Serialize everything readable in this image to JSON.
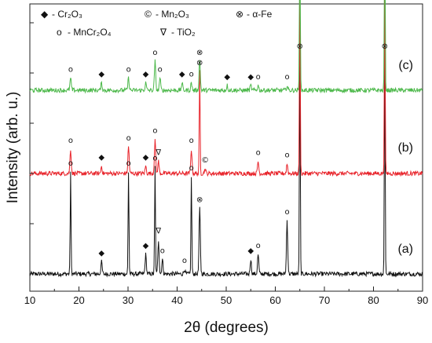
{
  "chart_data": {
    "type": "line",
    "xlabel": "2θ (degrees)",
    "ylabel": "Intensity (arb. u.)",
    "xlim": [
      10,
      90
    ],
    "xticks": [
      10,
      20,
      30,
      40,
      50,
      60,
      70,
      80,
      90
    ],
    "grid": false,
    "legend": {
      "placement": "top",
      "entries": [
        {
          "symbol": "◆",
          "symbol_name": "diamond",
          "text": "- Cr₂O₃"
        },
        {
          "symbol": "©",
          "symbol_name": "circled-c",
          "text": "- Mn₂O₃"
        },
        {
          "symbol": "⊗",
          "symbol_name": "circled-x",
          "text": "- α-Fe"
        },
        {
          "symbol": "o",
          "symbol_name": "circle",
          "text": "- MnCr₂O₄"
        },
        {
          "symbol": "∇",
          "symbol_name": "nabla",
          "text": "- TiO₂"
        }
      ]
    },
    "series": [
      {
        "name": "(a)",
        "color": "#111111",
        "baseline": 0.0,
        "peaks": [
          {
            "x": 18.3,
            "h": 0.42,
            "mark": "o"
          },
          {
            "x": 24.6,
            "h": 0.05,
            "mark": "◆"
          },
          {
            "x": 30.1,
            "h": 0.42,
            "mark": "o"
          },
          {
            "x": 33.6,
            "h": 0.08,
            "mark": "◆"
          },
          {
            "x": 35.5,
            "h": 0.44,
            "mark": "o"
          },
          {
            "x": 36.2,
            "h": 0.14,
            "mark": "∇"
          },
          {
            "x": 37.0,
            "h": 0.06,
            "mark": "o"
          },
          {
            "x": 41.5,
            "h": 0.02,
            "mark": "o"
          },
          {
            "x": 42.9,
            "h": 0.4,
            "mark": "o"
          },
          {
            "x": 44.6,
            "h": 0.27,
            "mark": "⊗"
          },
          {
            "x": 55.0,
            "h": 0.06,
            "mark": "◆"
          },
          {
            "x": 56.5,
            "h": 0.08,
            "mark": "o"
          },
          {
            "x": 62.4,
            "h": 0.22,
            "mark": "o"
          },
          {
            "x": 65.0,
            "h": 0.9,
            "mark": "⊗"
          },
          {
            "x": 82.3,
            "h": 0.9,
            "mark": "⊗"
          }
        ]
      },
      {
        "name": "(b)",
        "color": "#e8232a",
        "baseline": 1.0,
        "peaks": [
          {
            "x": 18.3,
            "h": 0.1,
            "mark": "o"
          },
          {
            "x": 24.6,
            "h": 0.03,
            "mark": "◆"
          },
          {
            "x": 30.1,
            "h": 0.11,
            "mark": "o"
          },
          {
            "x": 33.6,
            "h": 0.03,
            "mark": "◆"
          },
          {
            "x": 35.5,
            "h": 0.14,
            "mark": "o"
          },
          {
            "x": 36.2,
            "h": 0.05,
            "mark": "∇"
          },
          {
            "x": 42.9,
            "h": 0.1,
            "mark": "o"
          },
          {
            "x": 44.6,
            "h": 0.42,
            "mark": "⊗"
          },
          {
            "x": 45.7,
            "h": 0.02,
            "mark": "©"
          },
          {
            "x": 56.5,
            "h": 0.05,
            "mark": "o"
          },
          {
            "x": 62.4,
            "h": 0.04,
            "mark": "o"
          },
          {
            "x": 65.0,
            "h": 0.72,
            "mark": "⊗"
          },
          {
            "x": 82.3,
            "h": 0.72,
            "mark": "⊗"
          }
        ]
      },
      {
        "name": "(c)",
        "color": "#4cb84a",
        "baseline": 2.0,
        "peaks": [
          {
            "x": 18.3,
            "h": 0.05,
            "mark": "o"
          },
          {
            "x": 24.6,
            "h": 0.03,
            "mark": "◆"
          },
          {
            "x": 30.1,
            "h": 0.05,
            "mark": "o"
          },
          {
            "x": 33.6,
            "h": 0.03,
            "mark": "◆"
          },
          {
            "x": 35.5,
            "h": 0.12,
            "mark": "o"
          },
          {
            "x": 36.5,
            "h": 0.05,
            "mark": "o"
          },
          {
            "x": 41.0,
            "h": 0.03,
            "mark": "◆"
          },
          {
            "x": 42.9,
            "h": 0.03,
            "mark": "o"
          },
          {
            "x": 44.6,
            "h": 0.12,
            "mark": "⊗"
          },
          {
            "x": 50.2,
            "h": 0.02,
            "mark": "◆"
          },
          {
            "x": 55.0,
            "h": 0.02,
            "mark": "◆"
          },
          {
            "x": 56.5,
            "h": 0.02,
            "mark": "o"
          },
          {
            "x": 62.4,
            "h": 0.02,
            "mark": "o"
          },
          {
            "x": 65.0,
            "h": 0.65,
            "mark": "⊗"
          },
          {
            "x": 82.3,
            "h": 0.7,
            "mark": "⊗"
          }
        ]
      }
    ]
  }
}
